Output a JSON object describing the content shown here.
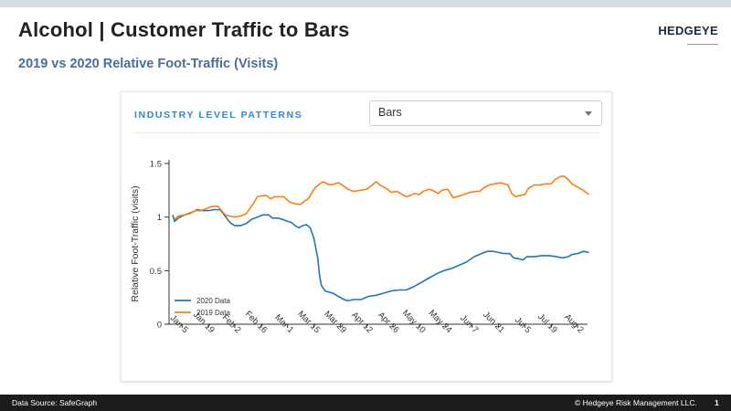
{
  "header": {
    "title": "Alcohol | Customer Traffic to Bars",
    "subtitle": "2019 vs 2020 Relative Foot-Traffic (Visits)",
    "logo_text": "HEDGEYE"
  },
  "panel": {
    "title": "INDUSTRY LEVEL PATTERNS",
    "dropdown": {
      "selected": "Bars",
      "icon": "chevron-down-icon"
    }
  },
  "footer": {
    "source": "Data Source: SafeGraph",
    "copyright": "© Hedgeye Risk Management LLC.",
    "page_number": "1"
  },
  "colors": {
    "series_2020": "#1f77b4",
    "series_2019": "#ff7f0e",
    "subtitle": "#4b6f93",
    "panel_title": "#2b8ad4"
  },
  "chart_data": {
    "type": "line",
    "title": "",
    "xlabel": "",
    "ylabel": "Relative Foot-Traffic (visits)",
    "ylim": [
      0,
      1.5
    ],
    "yticks": [
      0,
      0.5,
      1,
      1.5
    ],
    "ytick_labels": [
      "0",
      "0.5",
      "1",
      "1.5"
    ],
    "xlim": [
      0,
      214
    ],
    "xticks": [
      {
        "x": 5,
        "label": "Jan 5"
      },
      {
        "x": 19,
        "label": "Jan 19"
      },
      {
        "x": 33,
        "label": "Feb 2"
      },
      {
        "x": 47,
        "label": "Feb 16"
      },
      {
        "x": 61,
        "label": "Mar 1"
      },
      {
        "x": 75,
        "label": "Mar 15"
      },
      {
        "x": 89,
        "label": "Mar 29"
      },
      {
        "x": 103,
        "label": "Apr 12"
      },
      {
        "x": 117,
        "label": "Apr 26"
      },
      {
        "x": 131,
        "label": "May 10"
      },
      {
        "x": 145,
        "label": "May 24"
      },
      {
        "x": 159,
        "label": "Jun 7"
      },
      {
        "x": 173,
        "label": "Jun 21"
      },
      {
        "x": 187,
        "label": "Jul 5"
      },
      {
        "x": 201,
        "label": "Jul 19"
      },
      {
        "x": 215,
        "label": "Aug 2"
      }
    ],
    "grid": false,
    "legend_position": "bottom-left",
    "series": [
      {
        "name": "2020 Data",
        "color": "#1f77b4",
        "points": [
          [
            0,
            1.02
          ],
          [
            1,
            0.96
          ],
          [
            3,
            0.99
          ],
          [
            5,
            1.01
          ],
          [
            8,
            1.03
          ],
          [
            11,
            1.05
          ],
          [
            13,
            1.07
          ],
          [
            16,
            1.06
          ],
          [
            19,
            1.06
          ],
          [
            22,
            1.07
          ],
          [
            25,
            1.07
          ],
          [
            27,
            1.03
          ],
          [
            29,
            0.98
          ],
          [
            31,
            0.94
          ],
          [
            33,
            0.92
          ],
          [
            36,
            0.92
          ],
          [
            39,
            0.94
          ],
          [
            42,
            0.98
          ],
          [
            45,
            1.0
          ],
          [
            48,
            1.02
          ],
          [
            51,
            1.02
          ],
          [
            53,
            0.99
          ],
          [
            56,
            0.99
          ],
          [
            58,
            0.98
          ],
          [
            61,
            0.96
          ],
          [
            63,
            0.95
          ],
          [
            65,
            0.92
          ],
          [
            67,
            0.9
          ],
          [
            69,
            0.92
          ],
          [
            71,
            0.93
          ],
          [
            73,
            0.9
          ],
          [
            75,
            0.8
          ],
          [
            77,
            0.62
          ],
          [
            78,
            0.45
          ],
          [
            79,
            0.36
          ],
          [
            81,
            0.31
          ],
          [
            83,
            0.3
          ],
          [
            85,
            0.29
          ],
          [
            87,
            0.27
          ],
          [
            89,
            0.25
          ],
          [
            91,
            0.23
          ],
          [
            93,
            0.22
          ],
          [
            96,
            0.23
          ],
          [
            100,
            0.23
          ],
          [
            104,
            0.26
          ],
          [
            108,
            0.27
          ],
          [
            112,
            0.29
          ],
          [
            116,
            0.31
          ],
          [
            120,
            0.32
          ],
          [
            124,
            0.32
          ],
          [
            128,
            0.35
          ],
          [
            132,
            0.39
          ],
          [
            136,
            0.43
          ],
          [
            140,
            0.47
          ],
          [
            144,
            0.5
          ],
          [
            148,
            0.52
          ],
          [
            152,
            0.55
          ],
          [
            156,
            0.58
          ],
          [
            160,
            0.63
          ],
          [
            164,
            0.66
          ],
          [
            167,
            0.68
          ],
          [
            170,
            0.68
          ],
          [
            173,
            0.67
          ],
          [
            176,
            0.66
          ],
          [
            179,
            0.66
          ],
          [
            181,
            0.62
          ],
          [
            184,
            0.61
          ],
          [
            186,
            0.6
          ],
          [
            188,
            0.63
          ],
          [
            192,
            0.63
          ],
          [
            196,
            0.64
          ],
          [
            200,
            0.64
          ],
          [
            204,
            0.63
          ],
          [
            207,
            0.62
          ],
          [
            210,
            0.63
          ],
          [
            212,
            0.65
          ],
          [
            215,
            0.66
          ],
          [
            218,
            0.68
          ],
          [
            221,
            0.67
          ]
        ]
      },
      {
        "name": "2019 Data",
        "color": "#ff7f0e",
        "points": [
          [
            1,
            0.98
          ],
          [
            3,
            1.01
          ],
          [
            6,
            1.02
          ],
          [
            9,
            1.03
          ],
          [
            12,
            1.06
          ],
          [
            15,
            1.06
          ],
          [
            18,
            1.08
          ],
          [
            21,
            1.1
          ],
          [
            24,
            1.1
          ],
          [
            26,
            1.06
          ],
          [
            28,
            1.02
          ],
          [
            30,
            1.01
          ],
          [
            33,
            1.0
          ],
          [
            36,
            1.01
          ],
          [
            39,
            1.03
          ],
          [
            41,
            1.08
          ],
          [
            43,
            1.13
          ],
          [
            45,
            1.19
          ],
          [
            48,
            1.2
          ],
          [
            50,
            1.2
          ],
          [
            52,
            1.17
          ],
          [
            54,
            1.19
          ],
          [
            57,
            1.19
          ],
          [
            59,
            1.19
          ],
          [
            62,
            1.14
          ],
          [
            64,
            1.13
          ],
          [
            66,
            1.12
          ],
          [
            68,
            1.12
          ],
          [
            70,
            1.15
          ],
          [
            72,
            1.17
          ],
          [
            74,
            1.23
          ],
          [
            76,
            1.28
          ],
          [
            78,
            1.31
          ],
          [
            80,
            1.33
          ],
          [
            82,
            1.31
          ],
          [
            84,
            1.3
          ],
          [
            86,
            1.31
          ],
          [
            88,
            1.32
          ],
          [
            90,
            1.3
          ],
          [
            93,
            1.26
          ],
          [
            96,
            1.24
          ],
          [
            100,
            1.25
          ],
          [
            103,
            1.26
          ],
          [
            106,
            1.3
          ],
          [
            108,
            1.33
          ],
          [
            110,
            1.3
          ],
          [
            112,
            1.28
          ],
          [
            114,
            1.26
          ],
          [
            116,
            1.23
          ],
          [
            119,
            1.24
          ],
          [
            122,
            1.21
          ],
          [
            124,
            1.19
          ],
          [
            126,
            1.2
          ],
          [
            128,
            1.22
          ],
          [
            131,
            1.21
          ],
          [
            133,
            1.24
          ],
          [
            136,
            1.26
          ],
          [
            138,
            1.25
          ],
          [
            141,
            1.22
          ],
          [
            143,
            1.25
          ],
          [
            146,
            1.26
          ],
          [
            149,
            1.18
          ],
          [
            151,
            1.19
          ],
          [
            153,
            1.2
          ],
          [
            156,
            1.22
          ],
          [
            158,
            1.23
          ],
          [
            161,
            1.24
          ],
          [
            163,
            1.24
          ],
          [
            165,
            1.27
          ],
          [
            168,
            1.3
          ],
          [
            171,
            1.31
          ],
          [
            174,
            1.32
          ],
          [
            176,
            1.31
          ],
          [
            178,
            1.3
          ],
          [
            180,
            1.22
          ],
          [
            182,
            1.19
          ],
          [
            184,
            1.2
          ],
          [
            187,
            1.21
          ],
          [
            189,
            1.27
          ],
          [
            192,
            1.3
          ],
          [
            195,
            1.3
          ],
          [
            198,
            1.31
          ],
          [
            201,
            1.31
          ],
          [
            203,
            1.35
          ],
          [
            206,
            1.38
          ],
          [
            208,
            1.38
          ],
          [
            210,
            1.35
          ],
          [
            212,
            1.31
          ],
          [
            215,
            1.28
          ],
          [
            218,
            1.25
          ],
          [
            221,
            1.21
          ]
        ]
      }
    ]
  }
}
